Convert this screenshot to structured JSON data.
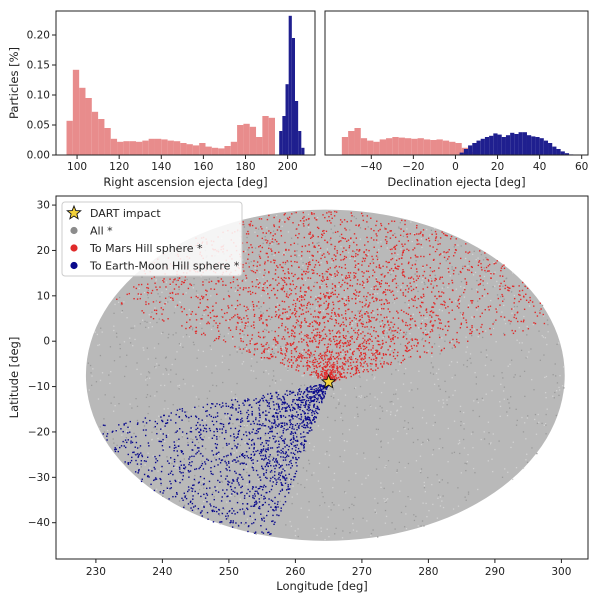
{
  "chart_data": [
    {
      "id": "ra_hist",
      "type": "histogram",
      "xlabel": "Right ascension ejecta [deg]",
      "ylabel": "Particles [%]",
      "xlim": [
        90,
        213
      ],
      "ylim": [
        0,
        0.24
      ],
      "xticks": [
        "100",
        "120",
        "140",
        "160",
        "180",
        "200"
      ],
      "xtick_values": [
        100,
        120,
        140,
        160,
        180,
        200
      ],
      "yticks": [
        "0.00",
        "0.05",
        "0.10",
        "0.15",
        "0.20"
      ],
      "ytick_values": [
        0,
        0.05,
        0.1,
        0.15,
        0.2
      ],
      "series": [
        {
          "color": "#e88c8c",
          "bin_edges": [
            95,
            98,
            101,
            104,
            107,
            110,
            113,
            116,
            119,
            122,
            125,
            128,
            131,
            134,
            137,
            140,
            143,
            146,
            149,
            152,
            155,
            158,
            161,
            164,
            167,
            170,
            173,
            176,
            179,
            182,
            185,
            188,
            191,
            194
          ],
          "values": [
            0.057,
            0.142,
            0.112,
            0.095,
            0.072,
            0.06,
            0.045,
            0.027,
            0.022,
            0.023,
            0.023,
            0.022,
            0.024,
            0.027,
            0.027,
            0.026,
            0.024,
            0.023,
            0.02,
            0.018,
            0.016,
            0.02,
            0.014,
            0.012,
            0.011,
            0.015,
            0.022,
            0.05,
            0.052,
            0.047,
            0.03,
            0.065,
            0.062
          ]
        },
        {
          "color": "#1f1f8f",
          "bin_edges": [
            196,
            197.5,
            199,
            200.5,
            202,
            203.5,
            205,
            206.5,
            208
          ],
          "values": [
            0.04,
            0.065,
            0.118,
            0.232,
            0.195,
            0.09,
            0.04,
            0.012
          ]
        }
      ]
    },
    {
      "id": "dec_hist",
      "type": "histogram",
      "xlabel": "Declination ejecta [deg]",
      "xlim": [
        -62,
        63
      ],
      "ylim": [
        0,
        0.24
      ],
      "xticks": [
        "−40",
        "−20",
        "0",
        "20",
        "40",
        "60"
      ],
      "xtick_values": [
        -40,
        -20,
        0,
        20,
        40,
        60
      ],
      "series": [
        {
          "color": "#e88c8c",
          "bin_edges": [
            -54,
            -51,
            -48,
            -45,
            -42,
            -39,
            -36,
            -33,
            -30,
            -27,
            -24,
            -21,
            -18,
            -15,
            -12,
            -9,
            -6,
            -3,
            0,
            3,
            6,
            9
          ],
          "values": [
            0.03,
            0.04,
            0.045,
            0.028,
            0.024,
            0.022,
            0.026,
            0.028,
            0.03,
            0.029,
            0.028,
            0.027,
            0.028,
            0.026,
            0.025,
            0.026,
            0.024,
            0.022,
            0.02,
            0.012,
            0.005
          ]
        },
        {
          "color": "#1f1f8f",
          "bin_edges": [
            2,
            4,
            6,
            8,
            10,
            12,
            14,
            16,
            18,
            20,
            22,
            24,
            26,
            28,
            30,
            32,
            34,
            36,
            38,
            40,
            42,
            44,
            46,
            48,
            50,
            52,
            54,
            56
          ],
          "values": [
            0.004,
            0.01,
            0.016,
            0.02,
            0.024,
            0.027,
            0.03,
            0.032,
            0.036,
            0.034,
            0.03,
            0.033,
            0.037,
            0.035,
            0.038,
            0.038,
            0.033,
            0.031,
            0.03,
            0.028,
            0.024,
            0.02,
            0.014,
            0.01,
            0.006,
            0.003,
            0.001
          ]
        }
      ]
    },
    {
      "id": "ejecta_scatter",
      "type": "scatter",
      "xlabel": "Longitude [deg]",
      "ylabel": "Latitude [deg]",
      "xlim": [
        224,
        304
      ],
      "ylim": [
        -48,
        32
      ],
      "xticks": [
        "230",
        "240",
        "250",
        "260",
        "270",
        "280",
        "290",
        "300"
      ],
      "xtick_values": [
        230,
        240,
        250,
        260,
        270,
        280,
        290,
        300
      ],
      "yticks": [
        "−40",
        "−30",
        "−20",
        "−10",
        "0",
        "10",
        "20",
        "30"
      ],
      "ytick_values": [
        -40,
        -30,
        -20,
        -10,
        0,
        10,
        20,
        30
      ],
      "ellipse": {
        "center": [
          264.5,
          -7.5
        ],
        "semi_axes": [
          36,
          36.5
        ]
      },
      "impact": {
        "x": 265,
        "y": -9
      },
      "legend": {
        "position": "top-left",
        "entries": [
          {
            "label": "DART impact",
            "marker": "star",
            "color": "#f3d23a"
          },
          {
            "label": "All *",
            "marker": "dot",
            "color": "#8c8c8c"
          },
          {
            "label": "To Mars Hill sphere *",
            "marker": "dot",
            "color": "#e02a2a"
          },
          {
            "label": "To Earth-Moon Hill sphere *",
            "marker": "dot",
            "color": "#0a0a8c"
          }
        ]
      },
      "wedges": [
        {
          "color": "#e02a2a",
          "angle_from_deg": 15,
          "angle_to_deg": 160
        },
        {
          "color": "#0a0a8c",
          "angle_from_deg": 190,
          "angle_to_deg": 250
        }
      ]
    }
  ]
}
